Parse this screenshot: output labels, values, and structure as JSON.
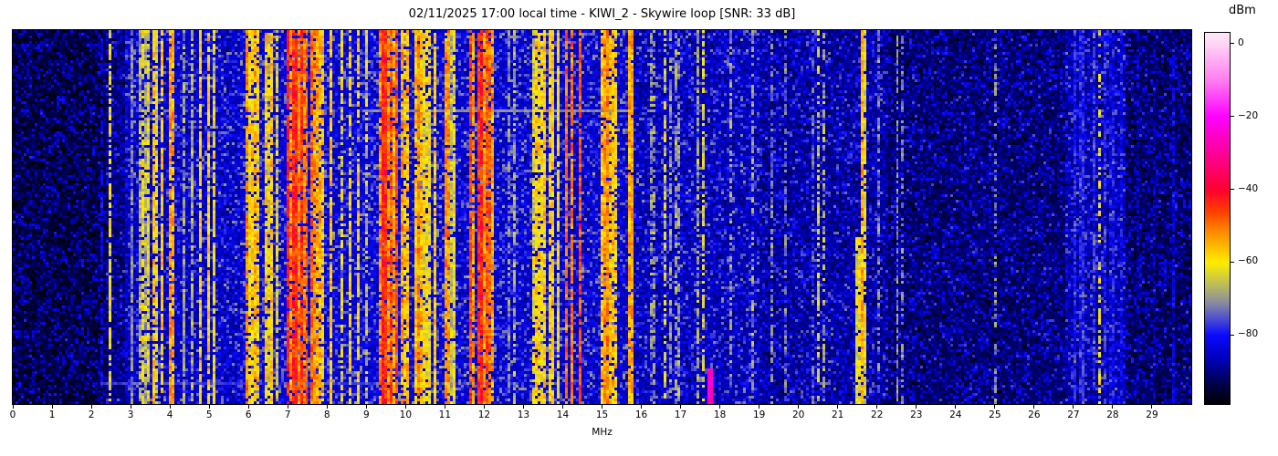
{
  "chart_data": {
    "type": "heatmap",
    "title": "02/11/2025 17:00 local time - KIWI_2 - Skywire loop [SNR: 33 dB]",
    "xlabel": "MHz",
    "x_range": [
      0,
      30
    ],
    "x_ticks": [
      0,
      1,
      2,
      3,
      4,
      5,
      6,
      7,
      8,
      9,
      10,
      11,
      12,
      13,
      14,
      15,
      16,
      17,
      18,
      19,
      20,
      21,
      22,
      23,
      24,
      25,
      26,
      27,
      28,
      29
    ],
    "grid": false,
    "legend": "none",
    "colorbar": {
      "label": "dBm",
      "range": [
        -99,
        3
      ],
      "ticks": [
        {
          "v": 0,
          "label": "0"
        },
        {
          "v": -20,
          "label": "−20"
        },
        {
          "v": -40,
          "label": "−40"
        },
        {
          "v": -60,
          "label": "−60"
        },
        {
          "v": -80,
          "label": "−80"
        }
      ]
    },
    "colormap": [
      {
        "v": -99,
        "c": "#000000"
      },
      {
        "v": -93,
        "c": "#000050"
      },
      {
        "v": -87,
        "c": "#0000b4"
      },
      {
        "v": -80,
        "c": "#0a0aff"
      },
      {
        "v": -76,
        "c": "#4646d8"
      },
      {
        "v": -71,
        "c": "#8c8ca0"
      },
      {
        "v": -66,
        "c": "#bebe5a"
      },
      {
        "v": -60,
        "c": "#ffee00"
      },
      {
        "v": -52,
        "c": "#ff9000"
      },
      {
        "v": -46,
        "c": "#ff4000"
      },
      {
        "v": -40,
        "c": "#ff0030"
      },
      {
        "v": -30,
        "c": "#ff0098"
      },
      {
        "v": -20,
        "c": "#ff00ff"
      },
      {
        "v": -10,
        "c": "#ff7df0"
      },
      {
        "v": 0,
        "c": "#ffd5f6"
      },
      {
        "v": 3,
        "c": "#ffe9fb"
      }
    ],
    "noise_floor": [
      {
        "f0": 0,
        "f1": 2.35,
        "level": -96
      },
      {
        "f0": 2.35,
        "f1": 2.85,
        "level": -92
      },
      {
        "f0": 2.85,
        "f1": 5.75,
        "level": -87
      },
      {
        "f0": 5.75,
        "f1": 11.2,
        "level": -85
      },
      {
        "f0": 11.2,
        "f1": 15.8,
        "level": -86
      },
      {
        "f0": 15.8,
        "f1": 19,
        "level": -88
      },
      {
        "f0": 19,
        "f1": 22.3,
        "level": -90
      },
      {
        "f0": 22.3,
        "f1": 26.8,
        "level": -93
      },
      {
        "f0": 26.8,
        "f1": 28.3,
        "level": -89
      },
      {
        "f0": 28.3,
        "f1": 30,
        "level": -94
      }
    ],
    "bands": [
      {
        "f0": 2.9,
        "f1": 3.1,
        "level": -72,
        "density": 0.3
      },
      {
        "f0": 3.15,
        "f1": 3.5,
        "level": -64,
        "density": 0.45
      },
      {
        "f0": 3.55,
        "f1": 3.95,
        "level": -60,
        "density": 0.5
      },
      {
        "f0": 3.95,
        "f1": 4.15,
        "level": -54,
        "density": 0.6
      },
      {
        "f0": 4.2,
        "f1": 4.65,
        "level": -68,
        "density": 0.35
      },
      {
        "f0": 4.7,
        "f1": 5.15,
        "level": -61,
        "density": 0.5
      },
      {
        "f0": 5.2,
        "f1": 5.55,
        "level": -68,
        "density": 0.4
      },
      {
        "f0": 5.75,
        "f1": 6.35,
        "level": -56,
        "density": 0.8
      },
      {
        "f0": 6.4,
        "f1": 6.95,
        "level": -61,
        "density": 0.45
      },
      {
        "f0": 6.95,
        "f1": 7.65,
        "level": -47,
        "density": 0.9
      },
      {
        "f0": 7.65,
        "f1": 8.15,
        "level": -56,
        "density": 0.65
      },
      {
        "f0": 8.2,
        "f1": 9.15,
        "level": -63,
        "density": 0.32,
        "dash": 0.3
      },
      {
        "f0": 9.2,
        "f1": 10.0,
        "level": -50,
        "density": 0.75
      },
      {
        "f0": 10.0,
        "f1": 10.55,
        "level": -57,
        "density": 0.6
      },
      {
        "f0": 10.55,
        "f1": 11.25,
        "level": -61,
        "density": 0.42
      },
      {
        "f0": 11.55,
        "f1": 12.25,
        "level": -50,
        "density": 0.65
      },
      {
        "f0": 12.6,
        "f1": 13.0,
        "level": -68,
        "density": 0.3,
        "dash": 0.3
      },
      {
        "f0": 13.2,
        "f1": 13.95,
        "level": -59,
        "density": 0.5
      },
      {
        "f0": 13.95,
        "f1": 14.45,
        "level": -51,
        "density": 0.6
      },
      {
        "f0": 14.9,
        "f1": 15.75,
        "level": -60,
        "density": 0.3
      },
      {
        "f0": 16.2,
        "f1": 17.4,
        "level": -71,
        "density": 0.15,
        "dash": 0.4
      },
      {
        "f0": 17.4,
        "f1": 18.1,
        "level": -65,
        "density": 0.25,
        "dash": 0.3
      },
      {
        "f0": 18.1,
        "f1": 19.0,
        "level": -73,
        "density": 0.12,
        "dash": 0.4
      },
      {
        "f0": 19.0,
        "f1": 21.3,
        "level": -73,
        "density": 0.1,
        "dash": 0.45
      },
      {
        "f0": 21.3,
        "f1": 21.8,
        "level": -64,
        "density": 0.2
      },
      {
        "f0": 21.9,
        "f1": 22.3,
        "level": -74,
        "density": 0.12,
        "dash": 0.4
      },
      {
        "f0": 26.85,
        "f1": 28.25,
        "level": -81,
        "density": 0.5
      },
      {
        "f0": 28.3,
        "f1": 29.9,
        "level": -88,
        "density": 0.15,
        "dash": 0.3
      }
    ],
    "carriers": [
      {
        "f": 2.28,
        "level": -84,
        "width": 1,
        "dash": 0.3
      },
      {
        "f": 2.5,
        "level": -62,
        "width": 1,
        "dash": 0.35
      },
      {
        "f": 3.33,
        "level": -63,
        "width": 1,
        "dash": 0.3
      },
      {
        "f": 3.6,
        "level": -57,
        "width": 1,
        "dash": 0.15
      },
      {
        "f": 3.8,
        "level": -59,
        "width": 1,
        "dash": 0.2
      },
      {
        "f": 4.0,
        "level": -52,
        "width": 1,
        "dash": 0.1
      },
      {
        "f": 4.8,
        "level": -60,
        "width": 1,
        "dash": 0.2
      },
      {
        "f": 5.0,
        "level": -57,
        "width": 1,
        "dash": 0.15
      },
      {
        "f": 7.2,
        "level": -43,
        "width": 2,
        "dash": 0.05
      },
      {
        "f": 7.35,
        "level": -45,
        "width": 1,
        "dash": 0.08
      },
      {
        "f": 9.5,
        "level": -44,
        "width": 2,
        "dash": 0.05
      },
      {
        "f": 10.0,
        "level": -58,
        "width": 1,
        "dash": 0.2
      },
      {
        "f": 11.05,
        "level": -53,
        "width": 2,
        "dash": 0.1
      },
      {
        "f": 11.93,
        "level": -44,
        "width": 2,
        "dash": 0.05
      },
      {
        "f": 12.07,
        "level": -48,
        "width": 1,
        "dash": 0.1
      },
      {
        "f": 13.37,
        "level": -58,
        "width": 1,
        "dash": 0.2
      },
      {
        "f": 13.7,
        "level": -57,
        "width": 1,
        "dash": 0.15
      },
      {
        "f": 14.1,
        "level": -48,
        "width": 1,
        "dash": 0.1
      },
      {
        "f": 14.25,
        "level": -50,
        "width": 1,
        "dash": 0.12
      },
      {
        "f": 15.12,
        "level": -52,
        "width": 2,
        "dash": 0.08
      },
      {
        "f": 15.35,
        "level": -58,
        "width": 1,
        "dash": 0.2
      },
      {
        "f": 15.7,
        "level": -54,
        "width": 2,
        "dash": 0.05
      },
      {
        "f": 16.33,
        "level": -70,
        "width": 1,
        "dash": 0.45
      },
      {
        "f": 16.62,
        "level": -63,
        "width": 1,
        "dash": 0.4
      },
      {
        "f": 17.55,
        "level": -63,
        "width": 1,
        "dash": 0.35
      },
      {
        "f": 17.75,
        "level": -26,
        "width": 2,
        "dash": 0,
        "y0": 0.9,
        "y1": 1
      },
      {
        "f": 18.3,
        "level": -70,
        "width": 1,
        "dash": 0.45
      },
      {
        "f": 19.35,
        "level": -72,
        "width": 1,
        "dash": 0.5
      },
      {
        "f": 20.5,
        "level": -64,
        "width": 1,
        "dash": 0.4
      },
      {
        "f": 21.56,
        "level": -61,
        "width": 3,
        "dash": 0.1,
        "y0": 0.55,
        "y1": 1
      },
      {
        "f": 21.6,
        "level": -56,
        "width": 1,
        "dash": 0.05
      },
      {
        "f": 22.55,
        "level": -70,
        "width": 1,
        "dash": 0.4
      },
      {
        "f": 22.66,
        "level": -71,
        "width": 1,
        "dash": 0.45
      },
      {
        "f": 25.0,
        "level": -70,
        "width": 1,
        "dash": 0.45
      },
      {
        "f": 27.25,
        "level": -80,
        "width": 2,
        "dash": 0.1
      },
      {
        "f": 27.7,
        "level": -62,
        "width": 1,
        "dash": 0.5
      },
      {
        "f": 29.55,
        "level": -85,
        "width": 1,
        "dash": 0.3
      }
    ],
    "row_stripes": [
      {
        "y": 0.21,
        "f0": 8.9,
        "f1": 15.7,
        "level": -71
      },
      {
        "y": 0.945,
        "f0": 2.2,
        "f1": 11.8,
        "level": -77
      }
    ],
    "seed": 1337
  }
}
